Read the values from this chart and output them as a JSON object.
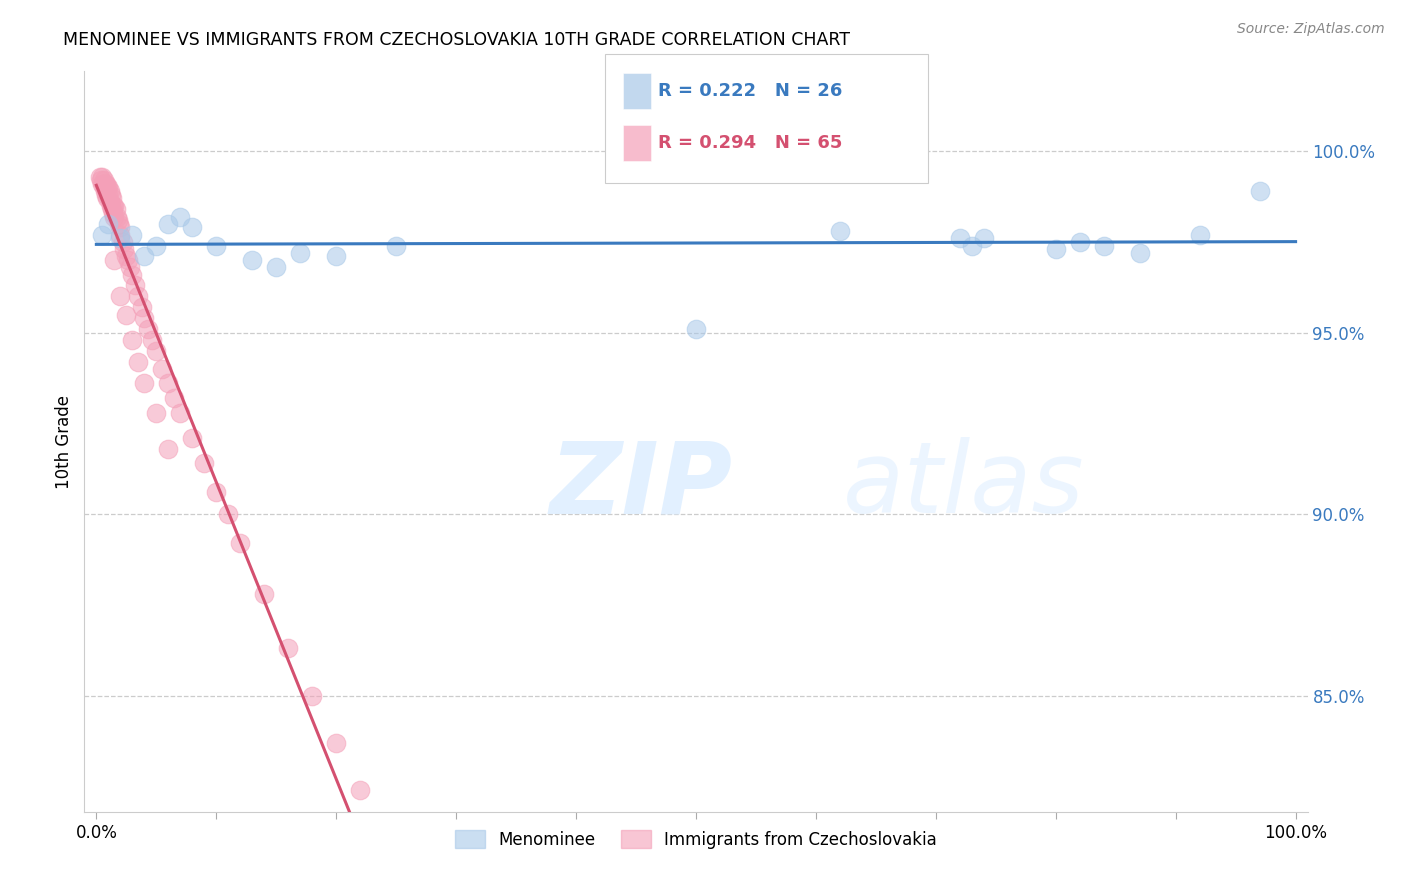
{
  "title": "MENOMINEE VS IMMIGRANTS FROM CZECHOSLOVAKIA 10TH GRADE CORRELATION CHART",
  "source": "Source: ZipAtlas.com",
  "ylabel": "10th Grade",
  "watermark_zip": "ZIP",
  "watermark_atlas": "atlas",
  "blue_r": "R = 0.222",
  "blue_n": "N = 26",
  "pink_r": "R = 0.294",
  "pink_n": "N = 65",
  "legend_label_blue": "Menominee",
  "legend_label_pink": "Immigrants from Czechoslovakia",
  "blue_color": "#a8c8e8",
  "pink_color": "#f4a0b8",
  "blue_line_color": "#3a7abf",
  "pink_line_color": "#d45070",
  "ytick_labels": [
    "85.0%",
    "90.0%",
    "95.0%",
    "100.0%"
  ],
  "ytick_values": [
    0.85,
    0.9,
    0.95,
    1.0
  ],
  "xtick_values": [
    0.0,
    0.1,
    0.2,
    0.3,
    0.4,
    0.5,
    0.6,
    0.7,
    0.8,
    0.9,
    1.0
  ],
  "xlim": [
    -0.01,
    1.01
  ],
  "ylim": [
    0.818,
    1.022
  ],
  "blue_scatter_x": [
    0.005,
    0.01,
    0.02,
    0.03,
    0.04,
    0.05,
    0.06,
    0.07,
    0.08,
    0.1,
    0.13,
    0.15,
    0.17,
    0.2,
    0.25,
    0.5,
    0.62,
    0.72,
    0.73,
    0.74,
    0.8,
    0.82,
    0.84,
    0.87,
    0.92,
    0.97
  ],
  "blue_scatter_y": [
    0.977,
    0.98,
    0.976,
    0.977,
    0.971,
    0.974,
    0.98,
    0.982,
    0.979,
    0.974,
    0.97,
    0.968,
    0.972,
    0.971,
    0.974,
    0.951,
    0.978,
    0.976,
    0.974,
    0.976,
    0.973,
    0.975,
    0.974,
    0.972,
    0.977,
    0.989
  ],
  "pink_scatter_x": [
    0.003,
    0.004,
    0.005,
    0.005,
    0.006,
    0.006,
    0.007,
    0.007,
    0.008,
    0.008,
    0.009,
    0.009,
    0.01,
    0.01,
    0.011,
    0.011,
    0.012,
    0.012,
    0.013,
    0.013,
    0.014,
    0.014,
    0.015,
    0.015,
    0.016,
    0.017,
    0.018,
    0.019,
    0.02,
    0.02,
    0.022,
    0.023,
    0.025,
    0.026,
    0.028,
    0.03,
    0.032,
    0.035,
    0.038,
    0.04,
    0.043,
    0.046,
    0.05,
    0.055,
    0.06,
    0.065,
    0.07,
    0.08,
    0.09,
    0.1,
    0.11,
    0.12,
    0.14,
    0.16,
    0.18,
    0.2,
    0.22,
    0.02,
    0.025,
    0.015,
    0.03,
    0.035,
    0.04,
    0.05,
    0.06
  ],
  "pink_scatter_y": [
    0.993,
    0.992,
    0.993,
    0.991,
    0.992,
    0.99,
    0.991,
    0.989,
    0.991,
    0.988,
    0.99,
    0.987,
    0.99,
    0.988,
    0.989,
    0.986,
    0.988,
    0.985,
    0.987,
    0.984,
    0.985,
    0.983,
    0.985,
    0.982,
    0.984,
    0.982,
    0.981,
    0.98,
    0.979,
    0.977,
    0.975,
    0.973,
    0.971,
    0.97,
    0.968,
    0.966,
    0.963,
    0.96,
    0.957,
    0.954,
    0.951,
    0.948,
    0.945,
    0.94,
    0.936,
    0.932,
    0.928,
    0.921,
    0.914,
    0.906,
    0.9,
    0.892,
    0.878,
    0.863,
    0.85,
    0.837,
    0.824,
    0.96,
    0.955,
    0.97,
    0.948,
    0.942,
    0.936,
    0.928,
    0.918
  ]
}
